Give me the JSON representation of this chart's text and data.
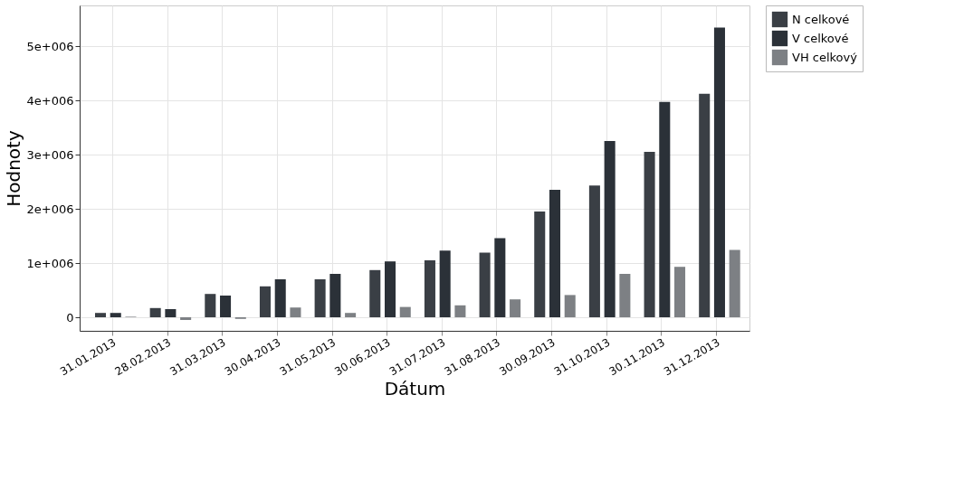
{
  "chart_data": {
    "type": "bar",
    "xlabel": "Dátum",
    "ylabel": "Hodnoty",
    "categories": [
      "31.01.2013",
      "28.02.2013",
      "31.03.2013",
      "30.04.2013",
      "31.05.2013",
      "30.06.2013",
      "31.07.2013",
      "31.08.2013",
      "30.09.2013",
      "31.10.2013",
      "30.11.2013",
      "31.12.2013"
    ],
    "series": [
      {
        "name": "N celkové",
        "color": "#3a3f45",
        "values": [
          80000,
          170000,
          430000,
          570000,
          700000,
          870000,
          1050000,
          1190000,
          1950000,
          2430000,
          3050000,
          4120000
        ]
      },
      {
        "name": "V celkové",
        "color": "#2b3138",
        "values": [
          80000,
          150000,
          400000,
          700000,
          800000,
          1030000,
          1230000,
          1460000,
          2350000,
          3250000,
          3970000,
          5340000
        ]
      },
      {
        "name": "VH celkový",
        "color": "#7d8084",
        "values": [
          10000,
          -50000,
          -30000,
          180000,
          80000,
          190000,
          220000,
          330000,
          410000,
          800000,
          930000,
          1240000
        ]
      }
    ],
    "ylim": [
      -250000,
      5750000
    ],
    "yticks": [
      {
        "value": 0,
        "label": "0"
      },
      {
        "value": 1000000,
        "label": "1e+006"
      },
      {
        "value": 2000000,
        "label": "2e+006"
      },
      {
        "value": 3000000,
        "label": "3e+006"
      },
      {
        "value": 4000000,
        "label": "4e+006"
      },
      {
        "value": 5000000,
        "label": "5e+006"
      }
    ],
    "grid": true,
    "legend": "top right"
  }
}
